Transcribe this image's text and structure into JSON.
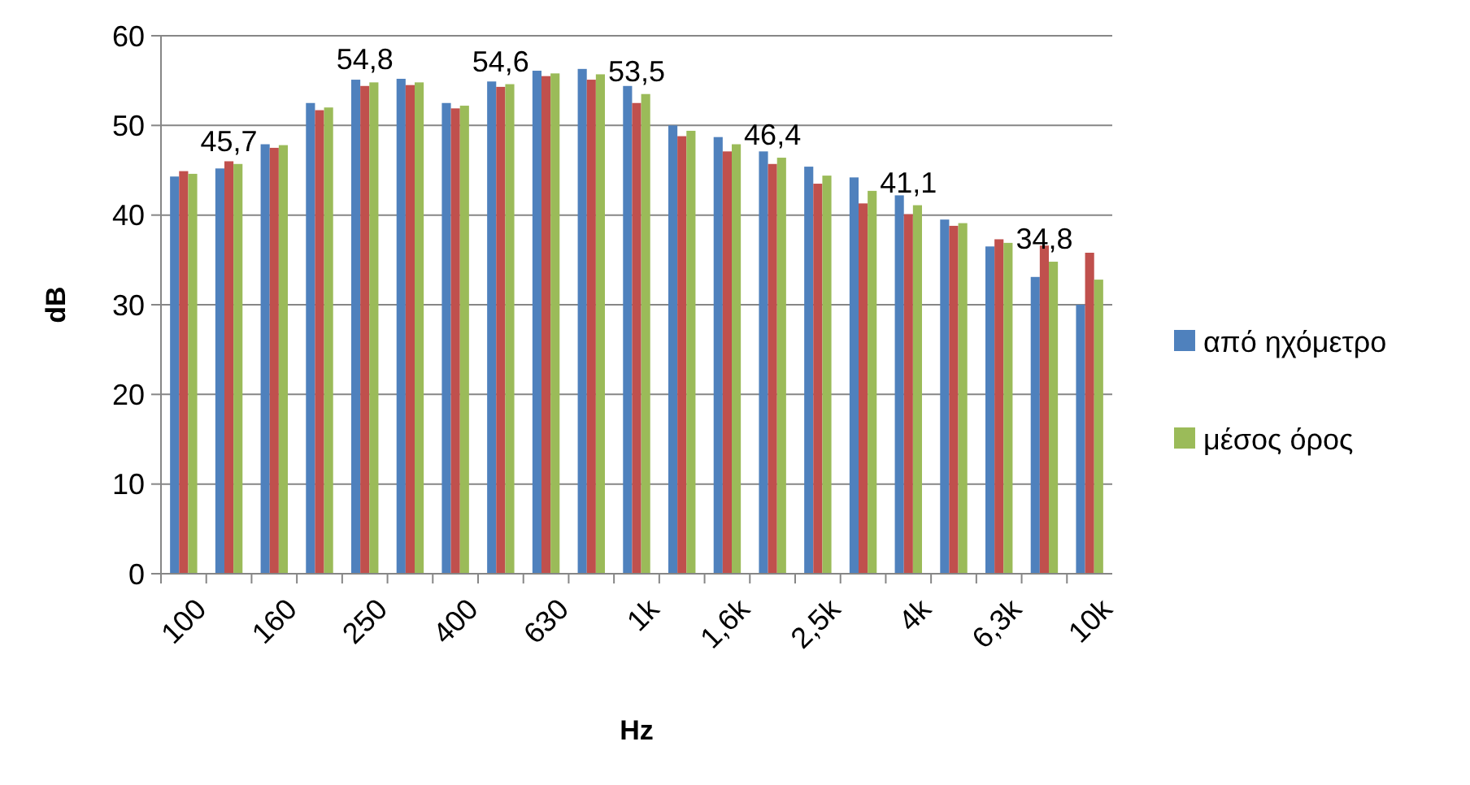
{
  "chart_data": {
    "type": "bar",
    "xlabel": "Hz",
    "ylabel": "dB",
    "categories": [
      "100",
      null,
      "160",
      null,
      "250",
      null,
      "400",
      null,
      "630",
      null,
      "1k",
      null,
      "1,6k",
      null,
      "2,5k",
      null,
      "4k",
      null,
      "6,3k",
      null,
      "10k"
    ],
    "series": [
      {
        "name": "από ηχόμετρο",
        "color": "#4f81bd",
        "values": [
          44.3,
          45.2,
          47.9,
          52.5,
          55.1,
          55.2,
          52.5,
          54.9,
          56.1,
          56.3,
          54.4,
          50.0,
          48.7,
          47.1,
          45.4,
          44.2,
          42.2,
          39.5,
          36.5,
          33.1,
          30.0
        ]
      },
      {
        "color": "#c0504d",
        "values": [
          44.9,
          46.0,
          47.5,
          51.7,
          54.4,
          54.5,
          51.9,
          54.3,
          55.5,
          55.1,
          52.5,
          48.8,
          47.1,
          45.7,
          43.5,
          41.3,
          40.1,
          38.8,
          37.3,
          36.6,
          35.8
        ]
      },
      {
        "name": "μέσος όρος",
        "color": "#9bbb59",
        "values": [
          44.6,
          45.7,
          47.8,
          52.0,
          54.8,
          54.8,
          52.2,
          54.6,
          55.8,
          55.7,
          53.5,
          49.4,
          47.9,
          46.4,
          44.4,
          42.7,
          41.1,
          39.1,
          36.9,
          34.8,
          32.8
        ],
        "value_labels": [
          null,
          "45,7",
          null,
          null,
          "54,8",
          null,
          null,
          "54,6",
          null,
          null,
          "53,5",
          null,
          null,
          "46,4",
          null,
          null,
          "41,1",
          null,
          null,
          "34,8",
          null
        ]
      }
    ],
    "ylim": [
      0,
      60
    ],
    "yticks": [
      0,
      10,
      20,
      30,
      40,
      50,
      60
    ],
    "grid": "y",
    "legend": "right"
  }
}
